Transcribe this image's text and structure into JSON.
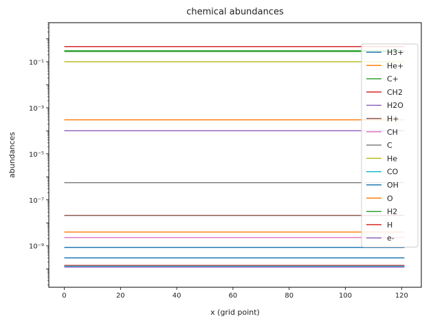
{
  "chart_data": {
    "type": "line",
    "title": "chemical abundances",
    "xlabel": "x (grid point)",
    "ylabel": "abundances",
    "xlim": [
      -5.5,
      127
    ],
    "ylim_log10": [
      -10.8,
      0.7
    ],
    "y_scale": "log",
    "x_ticks": [
      0,
      20,
      40,
      60,
      80,
      100,
      120
    ],
    "y_ticks": [
      {
        "exp": -9,
        "label": "10⁻⁹"
      },
      {
        "exp": -7,
        "label": "10⁻⁷"
      },
      {
        "exp": -5,
        "label": "10⁻⁵"
      },
      {
        "exp": -3,
        "label": "10⁻³"
      },
      {
        "exp": -1,
        "label": "10⁻¹"
      }
    ],
    "x": [
      0,
      121
    ],
    "grid": false,
    "legend_position": "right",
    "series": [
      {
        "name": "H3+",
        "color": "#1f77b4",
        "values": [
          3e-10,
          3e-10
        ]
      },
      {
        "name": "He+",
        "color": "#ff7f0e",
        "values": [
          0.0003,
          0.0003
        ]
      },
      {
        "name": "C+",
        "color": "#2ca02c",
        "values": [
          0.3,
          0.3
        ]
      },
      {
        "name": "CH2",
        "color": "#d62728",
        "values": [
          1.4e-10,
          1.4e-10
        ]
      },
      {
        "name": "H2O",
        "color": "#9467bd",
        "values": [
          0.0001,
          0.0001
        ]
      },
      {
        "name": "H+",
        "color": "#8c564b",
        "values": [
          2.1e-08,
          2.1e-08
        ]
      },
      {
        "name": "CH",
        "color": "#e377c2",
        "values": [
          2.3e-09,
          2.3e-09
        ]
      },
      {
        "name": "C",
        "color": "#7f7f7f",
        "values": [
          5.6e-07,
          5.6e-07
        ]
      },
      {
        "name": "He",
        "color": "#bcbd22",
        "values": [
          0.1,
          0.1
        ]
      },
      {
        "name": "CO",
        "color": "#17becf",
        "values": [
          1.3e-10,
          1.3e-10
        ]
      },
      {
        "name": "OH",
        "color": "#1f77b4",
        "values": [
          8.5e-10,
          8.5e-10
        ]
      },
      {
        "name": "O",
        "color": "#ff7f0e",
        "values": [
          4e-09,
          4e-09
        ]
      },
      {
        "name": "H2",
        "color": "#2ca02c",
        "values": [
          0.28,
          0.28
        ]
      },
      {
        "name": "H",
        "color": "#d62728",
        "values": [
          0.46,
          0.46
        ]
      },
      {
        "name": "e-",
        "color": "#9467bd",
        "values": [
          1.2e-10,
          1.2e-10
        ]
      }
    ]
  }
}
